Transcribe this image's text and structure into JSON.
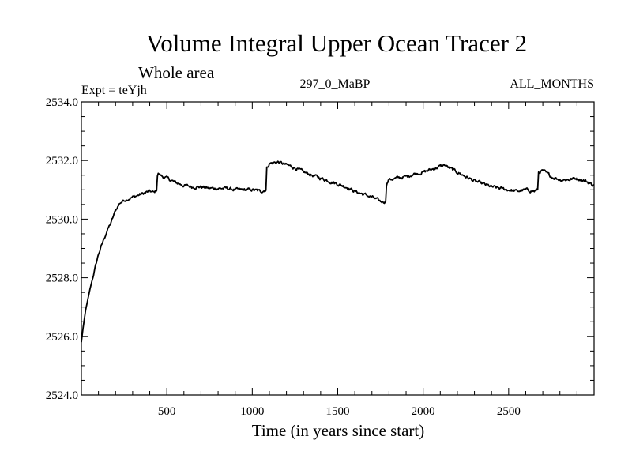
{
  "chart_data": {
    "type": "line",
    "title": "Volume Integral Upper Ocean Tracer 2",
    "subtitle": "Whole area",
    "expt_label": "Expt = teYjh",
    "center_label": "297_0_MaBP",
    "right_label": "ALL_MONTHS",
    "xlabel": "Time (in years since start)",
    "ylabel": "",
    "xlim": [
      0,
      3000
    ],
    "ylim": [
      2524.0,
      2534.0
    ],
    "x_ticks": [
      500,
      1000,
      1500,
      2000,
      2500
    ],
    "x_tick_labels": [
      "500",
      "1000",
      "1500",
      "2000",
      "2500"
    ],
    "y_ticks": [
      2524.0,
      2526.0,
      2528.0,
      2530.0,
      2532.0,
      2534.0
    ],
    "y_tick_labels": [
      "2524.0",
      "2526.0",
      "2528.0",
      "2530.0",
      "2532.0",
      "2534.0"
    ],
    "series": [
      {
        "name": "Upper Ocean Tracer 2",
        "color": "#000000",
        "x": [
          0,
          10,
          25,
          50,
          75,
          100,
          125,
          150,
          175,
          200,
          225,
          250,
          275,
          300,
          325,
          350,
          375,
          400,
          425,
          440,
          445,
          450,
          475,
          500,
          550,
          600,
          650,
          700,
          750,
          800,
          850,
          900,
          950,
          1000,
          1050,
          1080,
          1085,
          1100,
          1150,
          1200,
          1250,
          1300,
          1350,
          1400,
          1450,
          1500,
          1550,
          1600,
          1650,
          1700,
          1750,
          1780,
          1785,
          1800,
          1850,
          1900,
          1950,
          2000,
          2050,
          2100,
          2125,
          2150,
          2200,
          2250,
          2300,
          2350,
          2400,
          2450,
          2500,
          2550,
          2600,
          2650,
          2670,
          2675,
          2700,
          2750,
          2800,
          2850,
          2900,
          2950,
          3000
        ],
        "values": [
          2525.8,
          2526.3,
          2526.9,
          2527.6,
          2528.2,
          2528.8,
          2529.2,
          2529.6,
          2529.9,
          2530.3,
          2530.55,
          2530.65,
          2530.7,
          2530.75,
          2530.8,
          2530.85,
          2530.9,
          2530.95,
          2530.9,
          2531.0,
          2531.5,
          2531.55,
          2531.45,
          2531.4,
          2531.25,
          2531.15,
          2531.1,
          2531.1,
          2531.05,
          2531.05,
          2531.05,
          2531.0,
          2531.0,
          2531.0,
          2530.95,
          2531.0,
          2531.75,
          2531.9,
          2531.95,
          2531.85,
          2531.75,
          2531.6,
          2531.5,
          2531.4,
          2531.3,
          2531.2,
          2531.1,
          2530.95,
          2530.85,
          2530.75,
          2530.6,
          2530.6,
          2531.2,
          2531.35,
          2531.4,
          2531.45,
          2531.55,
          2531.6,
          2531.7,
          2531.8,
          2531.85,
          2531.75,
          2531.6,
          2531.45,
          2531.3,
          2531.2,
          2531.1,
          2531.05,
          2531.0,
          2530.95,
          2531.0,
          2530.95,
          2531.0,
          2531.6,
          2531.65,
          2531.45,
          2531.35,
          2531.35,
          2531.4,
          2531.3,
          2531.15
        ]
      }
    ]
  }
}
